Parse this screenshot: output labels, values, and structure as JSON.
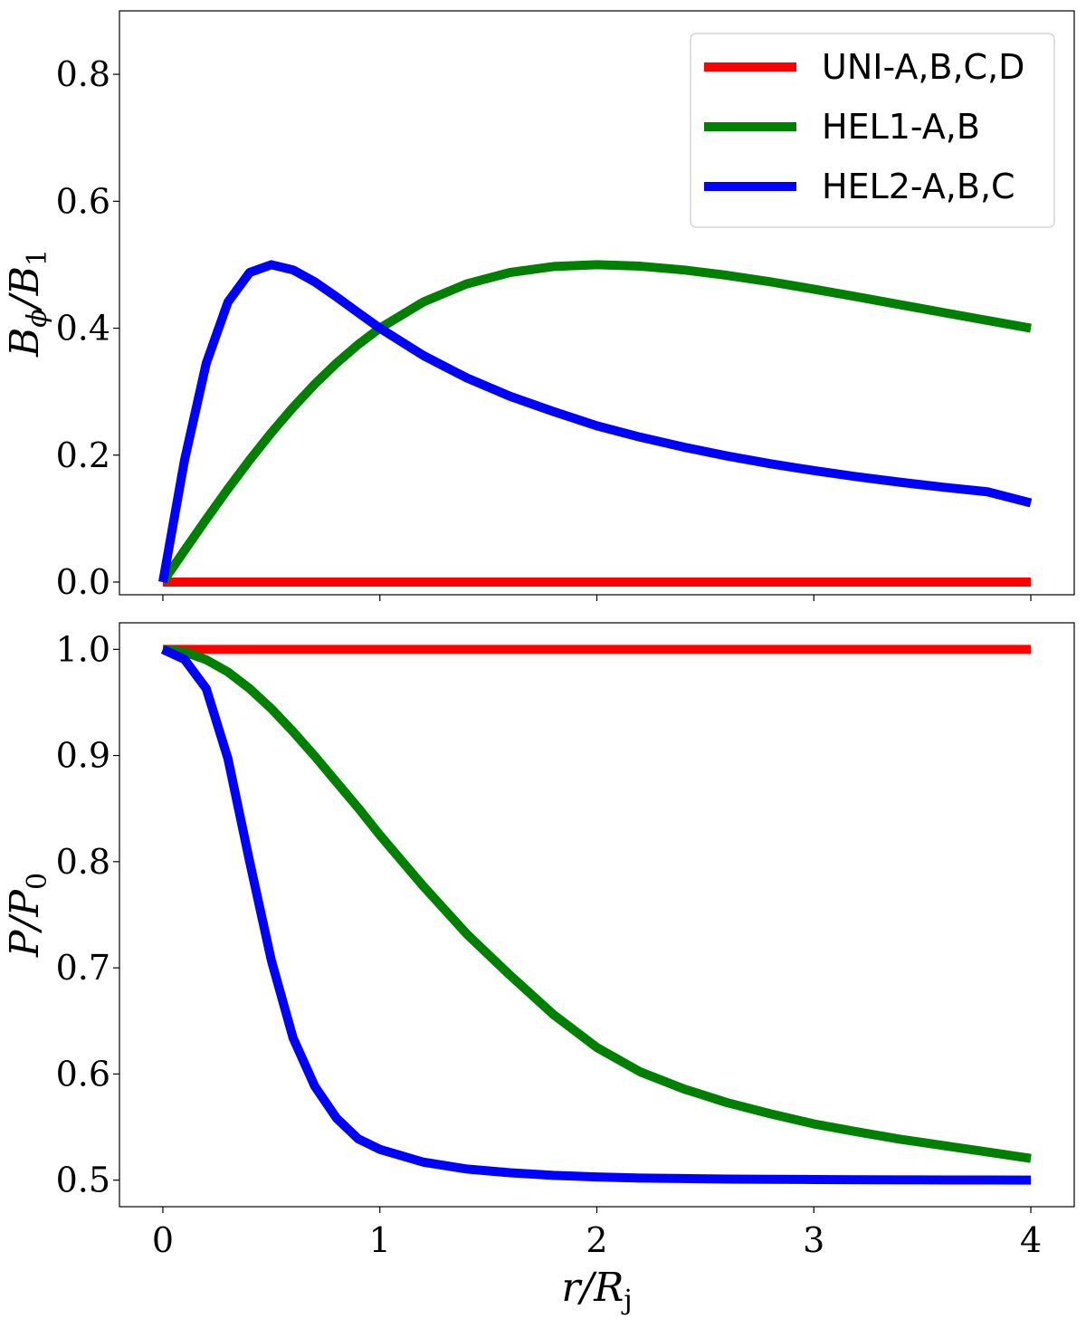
{
  "chart_data": [
    {
      "type": "line",
      "panel": "top",
      "xlabel": "",
      "ylabel_main": "B",
      "ylabel_sub1": "ϕ",
      "ylabel_mid": "/B",
      "ylabel_sub2": "1",
      "xlim": [
        -0.2,
        4.2
      ],
      "ylim": [
        -0.02,
        0.9
      ],
      "xticks": [
        0,
        1,
        2,
        3,
        4
      ],
      "yticks": [
        0.0,
        0.2,
        0.4,
        0.6,
        0.8
      ],
      "ytick_labels": [
        "0.0",
        "0.2",
        "0.4",
        "0.6",
        "0.8"
      ],
      "grid": false,
      "legend_position": "top-right",
      "x": [
        0,
        0.1,
        0.2,
        0.3,
        0.4,
        0.5,
        0.6,
        0.7,
        0.8,
        0.9,
        1.0,
        1.2,
        1.4,
        1.6,
        1.8,
        2.0,
        2.2,
        2.4,
        2.6,
        2.8,
        3.0,
        3.2,
        3.4,
        3.6,
        3.8,
        4.0
      ],
      "series": [
        {
          "name": "UNI-A,B,C,D",
          "color": "#ff0000",
          "values": [
            0,
            0,
            0,
            0,
            0,
            0,
            0,
            0,
            0,
            0,
            0,
            0,
            0,
            0,
            0,
            0,
            0,
            0,
            0,
            0,
            0,
            0,
            0,
            0,
            0,
            0
          ]
        },
        {
          "name": "HEL1-A,B",
          "color": "#008000",
          "values": [
            0,
            0.0499,
            0.099,
            0.1468,
            0.1923,
            0.2353,
            0.2752,
            0.3118,
            0.3448,
            0.3742,
            0.4,
            0.4412,
            0.4698,
            0.4878,
            0.4972,
            0.5,
            0.4977,
            0.4918,
            0.4833,
            0.473,
            0.4615,
            0.4494,
            0.4369,
            0.4245,
            0.4122,
            0.4
          ]
        },
        {
          "name": "HEL2-A,B,C",
          "color": "#0000ff",
          "values": [
            0,
            0.1923,
            0.3448,
            0.4412,
            0.4878,
            0.5,
            0.4918,
            0.473,
            0.4494,
            0.4245,
            0.4,
            0.3571,
            0.3218,
            0.2927,
            0.2687,
            0.2462,
            0.2283,
            0.2126,
            0.1987,
            0.1864,
            0.1756,
            0.1659,
            0.1572,
            0.1493,
            0.1422,
            0.1247
          ]
        }
      ]
    },
    {
      "type": "line",
      "panel": "bottom",
      "xlabel_main": "r/R",
      "xlabel_sub": "j",
      "ylabel_main": "P/P",
      "ylabel_sub": "0",
      "xlim": [
        -0.2,
        4.2
      ],
      "ylim": [
        0.475,
        1.025
      ],
      "xticks": [
        0,
        1,
        2,
        3,
        4
      ],
      "xtick_labels": [
        "0",
        "1",
        "2",
        "3",
        "4"
      ],
      "yticks": [
        0.5,
        0.6,
        0.7,
        0.8,
        0.9,
        1.0
      ],
      "ytick_labels": [
        "0.5",
        "0.6",
        "0.7",
        "0.8",
        "0.9",
        "1.0"
      ],
      "grid": false,
      "x": [
        0,
        0.1,
        0.2,
        0.3,
        0.4,
        0.5,
        0.6,
        0.7,
        0.8,
        0.9,
        1.0,
        1.2,
        1.4,
        1.6,
        1.8,
        2.0,
        2.2,
        2.4,
        2.6,
        2.8,
        3.0,
        3.2,
        3.4,
        3.6,
        3.8,
        4.0
      ],
      "series": [
        {
          "name": "UNI-A,B,C,D",
          "color": "#ff0000",
          "values": [
            1,
            1,
            1,
            1,
            1,
            1,
            1,
            1,
            1,
            1,
            1,
            1,
            1,
            1,
            1,
            1,
            1,
            1,
            1,
            1,
            1,
            1,
            1,
            1,
            1,
            1
          ]
        },
        {
          "name": "HEL1-A,B",
          "color": "#008000",
          "values": [
            1.0,
            0.9975,
            0.9902,
            0.9787,
            0.963,
            0.9441,
            0.9225,
            0.8994,
            0.875,
            0.8507,
            0.825,
            0.777,
            0.732,
            0.693,
            0.656,
            0.625,
            0.602,
            0.586,
            0.573,
            0.5625,
            0.553,
            0.5455,
            0.5385,
            0.5325,
            0.5265,
            0.5205
          ]
        },
        {
          "name": "HEL2-A,B,C",
          "color": "#0000ff",
          "values": [
            1.0,
            0.9905,
            0.963,
            0.897,
            0.8,
            0.707,
            0.634,
            0.5885,
            0.5585,
            0.539,
            0.529,
            0.517,
            0.5105,
            0.507,
            0.5045,
            0.503,
            0.502,
            0.5015,
            0.501,
            0.5008,
            0.5006,
            0.5004,
            0.5003,
            0.5002,
            0.5001,
            0.5
          ]
        }
      ]
    }
  ]
}
